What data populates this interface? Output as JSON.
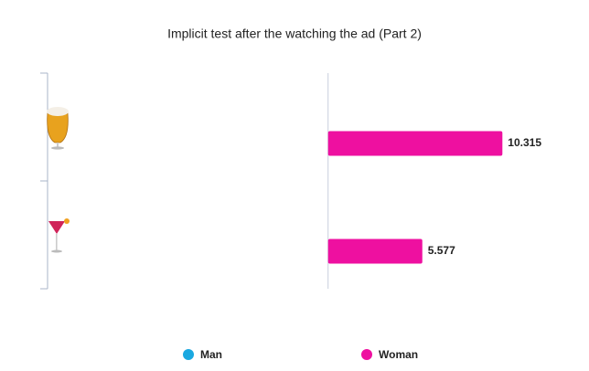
{
  "chart_data": {
    "type": "bar",
    "orientation": "horizontal",
    "title": "Implicit test after the watching the ad (Part 2)",
    "categories": [
      null,
      null
    ],
    "series": [
      {
        "name": "Man",
        "color": "#1aa8e0",
        "values": [
          null,
          null
        ]
      },
      {
        "name": "Woman",
        "color": "#ee10a0",
        "values": [
          10.315,
          5.577
        ]
      }
    ],
    "xlim": [
      -16.6,
      13.6
    ],
    "legend": "bottom"
  }
}
